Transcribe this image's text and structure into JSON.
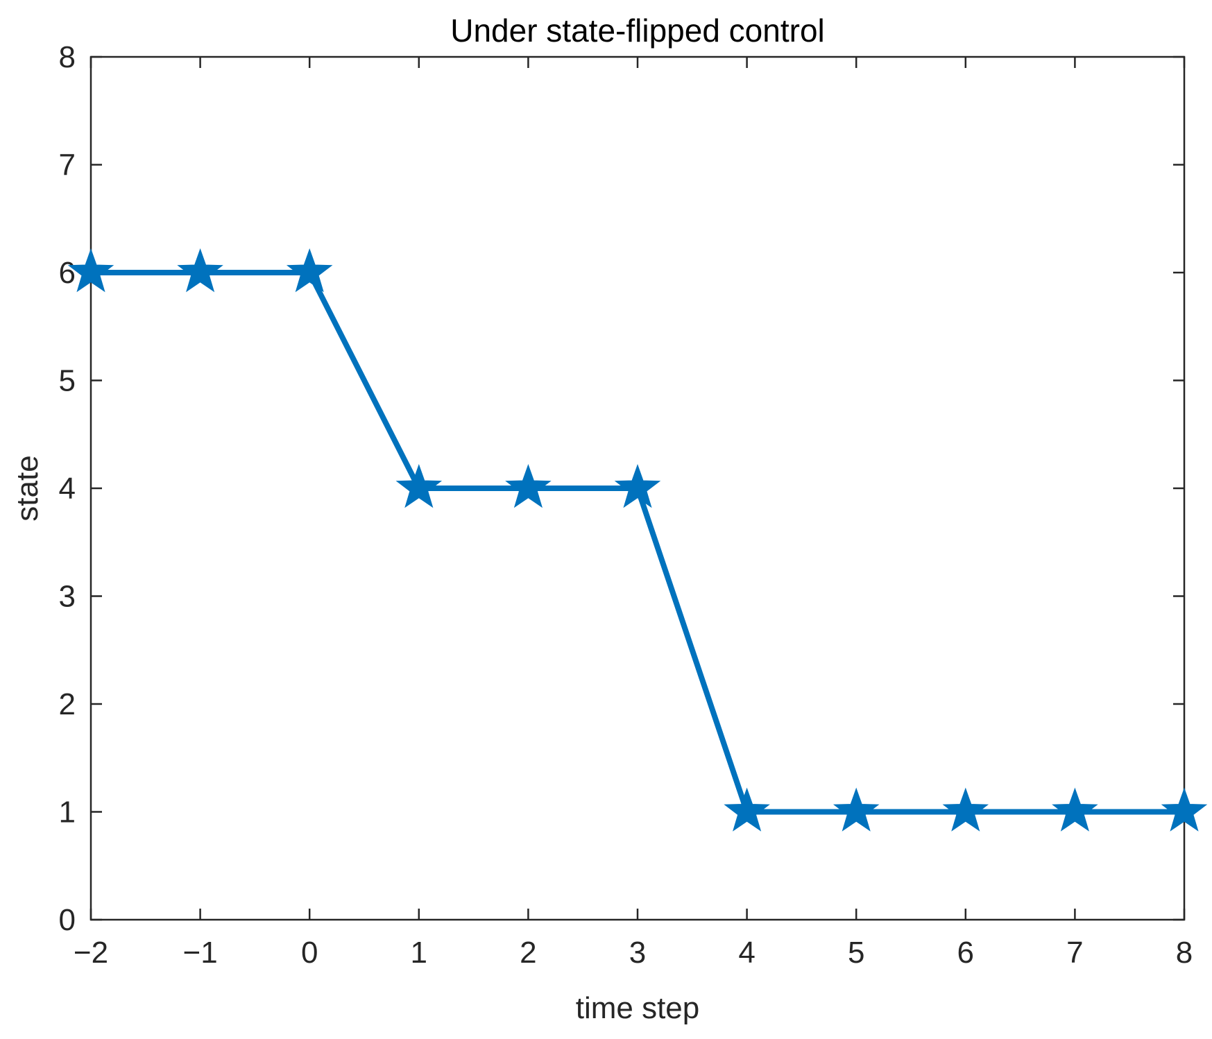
{
  "chart_data": {
    "type": "line",
    "title": "Under state-flipped control",
    "xlabel": "time step",
    "ylabel": "state",
    "xlim": [
      -2,
      8
    ],
    "ylim": [
      0,
      8
    ],
    "xticks": [
      -2,
      -1,
      0,
      1,
      2,
      3,
      4,
      5,
      6,
      7,
      8
    ],
    "xtick_labels": [
      "−2",
      "−1",
      "0",
      "1",
      "2",
      "3",
      "4",
      "5",
      "6",
      "7",
      "8"
    ],
    "yticks": [
      0,
      1,
      2,
      3,
      4,
      5,
      6,
      7,
      8
    ],
    "ytick_labels": [
      "0",
      "1",
      "2",
      "3",
      "4",
      "5",
      "6",
      "7",
      "8"
    ],
    "grid": false,
    "box": true,
    "series": [
      {
        "x": [
          -2,
          -1,
          0,
          1,
          2,
          3,
          4,
          5,
          6,
          7,
          8
        ],
        "y": [
          6,
          6,
          6,
          4,
          4,
          4,
          1,
          1,
          1,
          1,
          1
        ],
        "color": "#0072BD",
        "marker": "star"
      }
    ]
  }
}
